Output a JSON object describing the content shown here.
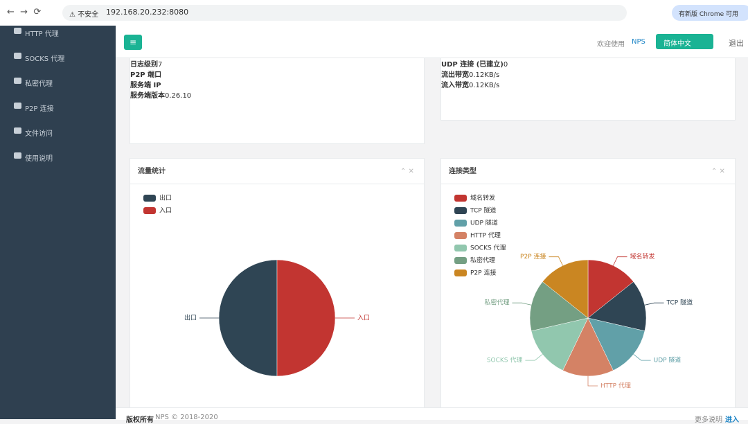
{
  "browser": {
    "security": "不安全",
    "url": "192.168.20.232:8080",
    "update": "有新版 Chrome 可用"
  },
  "sidebar": [
    "HTTP 代理",
    "SOCKS 代理",
    "私密代理",
    "P2P 连接",
    "文件访问",
    "使用说明"
  ],
  "topbar": {
    "welcome": "欢迎使用",
    "brand": "NPS",
    "language": "简体中文",
    "logout": "退出"
  },
  "left_panel": [
    {
      "label": "日志级别",
      "value": 7
    },
    {
      "label": "P2P 端口"
    },
    {
      "label": "服务端 IP"
    },
    {
      "label": "服务端版本",
      "value": "0.26.10"
    }
  ],
  "right_panel": [
    {
      "label": "UDP 连接 (已建立)",
      "value": 0
    },
    {
      "label": "流出带宽",
      "value": "0.12KB/s"
    },
    {
      "label": "流入带宽",
      "value": "0.12KB/s"
    }
  ],
  "chart_data": [
    {
      "type": "pie",
      "title": "流量统计",
      "categories": [
        "出口",
        "入口"
      ],
      "values": [
        50,
        50
      ],
      "colors": [
        "#2f4554",
        "#c23531"
      ],
      "clockwise": false,
      "labels": true
    },
    {
      "type": "pie",
      "title": "连接类型",
      "categories": [
        "域名转发",
        "TCP 隧道",
        "UDP 隧道",
        "HTTP 代理",
        "SOCKS 代理",
        "私密代理",
        "P2P 连接"
      ],
      "values": [
        1,
        1,
        1,
        1,
        1,
        1,
        1
      ],
      "colors": [
        "#c23531",
        "#2f4554",
        "#61a0a8",
        "#d48265",
        "#91c7ae",
        "#749f83",
        "#ca8622"
      ],
      "clockwise": true,
      "labels": true
    }
  ],
  "footer": {
    "copyright": "版权所有",
    "text": "NPS © 2018-2020",
    "more": "更多说明",
    "enter": "进入"
  }
}
